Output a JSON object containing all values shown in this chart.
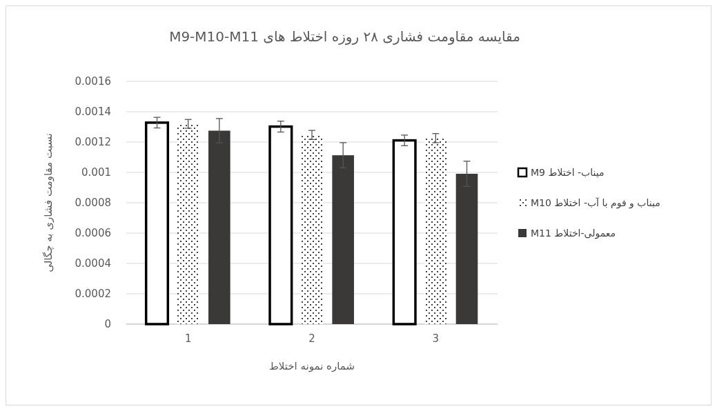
{
  "chart_data": {
    "type": "bar",
    "title": "مقایسه مقاومت فشاری ۲۸ روزه اختلاط های M9-M10-M11",
    "xlabel": "شماره نمونه اختلاط",
    "ylabel": "نسبت مقاومت فشاری به چگالی",
    "categories": [
      "1",
      "2",
      "3"
    ],
    "series": [
      {
        "name": "میناب- اختلاط M9",
        "color": "#ffffff",
        "values": [
          0.001328,
          0.001302,
          0.001211
        ],
        "errors": [
          3.5e-05,
          3.6e-05,
          3.5e-05
        ]
      },
      {
        "name": "مبناب و فوم با آب- اختلاط M10",
        "color": "#000000",
        "values": [
          0.00132,
          0.001247,
          0.001226
        ],
        "errors": [
          2.9e-05,
          3e-05,
          3e-05
        ]
      },
      {
        "name": "معمولی-اختلاط M11",
        "color": "#3a3938",
        "values": [
          0.001275,
          0.001113,
          0.000991
        ],
        "errors": [
          8e-05,
          8.3e-05,
          8.3e-05
        ]
      }
    ],
    "ylim": [
      0,
      0.0016
    ],
    "yticks": [
      0,
      0.0002,
      0.0004,
      0.0006,
      0.0008,
      0.001,
      0.0012,
      0.0014,
      0.0016
    ],
    "grid": "y",
    "legend": "right"
  }
}
